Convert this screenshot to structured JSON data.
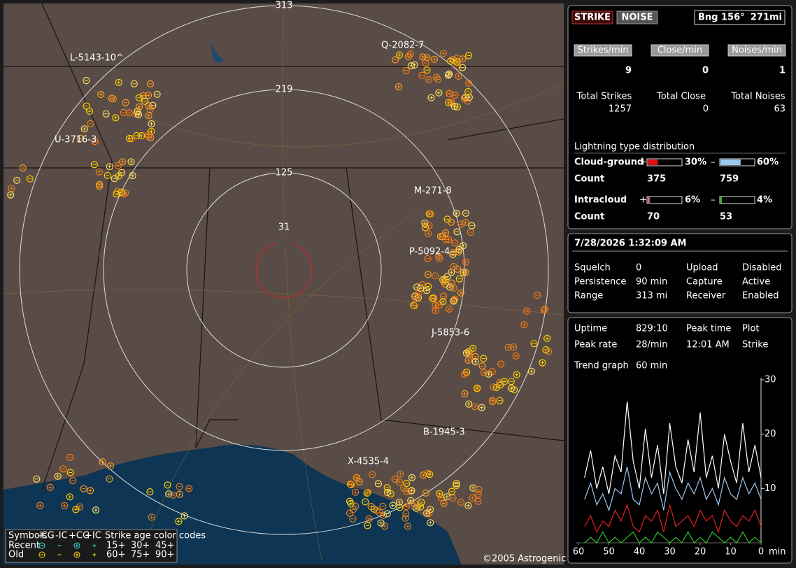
{
  "map": {
    "range_rings": [
      313,
      219,
      125,
      31
    ],
    "storms": [
      "L-5143-10^",
      "Q-2082-7",
      "U-3716-3",
      "M-271-8",
      "P-5092-4",
      "J-5853-6",
      "B-1945-3",
      "X-4535-4"
    ],
    "legend": {
      "header": [
        "Symbols",
        "-CG",
        "-IC",
        "+CG",
        "+IC",
        "Strike age color codes"
      ],
      "rows": [
        "Recent",
        "Old"
      ],
      "ages": [
        [
          "15+",
          "30+",
          "45+"
        ],
        [
          "60+",
          "75+",
          "90+"
        ]
      ]
    },
    "copyright": "©2005 Astrogenic Systems"
  },
  "status": {
    "strike_button": "STRIKE",
    "noise_button": "NOISE",
    "bearing": "Bng 156°",
    "distance": "271mi"
  },
  "rates": [
    {
      "label": "Strikes/min",
      "value": 9
    },
    {
      "label": "Close/min",
      "value": 0
    },
    {
      "label": "Noises/min",
      "value": 1
    }
  ],
  "totals": [
    {
      "label": "Total Strikes",
      "value": 1257
    },
    {
      "label": "Total Close",
      "value": 0
    },
    {
      "label": "Total Noises",
      "value": 63
    }
  ],
  "distribution": {
    "title": "Lightning type distribution",
    "plus": "+",
    "minus": "–",
    "count_label": "Count",
    "rows": [
      {
        "label": "Cloud-ground",
        "positive": {
          "value": 30,
          "label": "30%"
        },
        "negative": {
          "value": 60,
          "label": "60%"
        },
        "positive_count": 375,
        "negative_count": 759
      },
      {
        "label": "Intracloud",
        "positive": {
          "value": 6,
          "label": "6%"
        },
        "negative": {
          "value": 4,
          "label": "4%"
        },
        "positive_count": 70,
        "negative_count": 53
      }
    ]
  },
  "datetime": "7/28/2026 1:32:09 AM",
  "settings": [
    [
      "Squelch",
      "0",
      "Upload",
      "Disabled"
    ],
    [
      "Persistence",
      "90 min",
      "Capture",
      "Active"
    ],
    [
      "Range",
      "313 mi",
      "Receiver",
      "Enabled"
    ]
  ],
  "stats": [
    [
      "Uptime",
      "829:10",
      "Peak time",
      "Plot"
    ],
    [
      "Peak rate",
      "28/min",
      "12:01 AM",
      "Strike"
    ],
    [
      "Trend graph",
      "60 min"
    ]
  ],
  "chart_data": {
    "type": "line",
    "x_unit": "min",
    "x": [
      58,
      56,
      54,
      52,
      50,
      48,
      46,
      44,
      42,
      40,
      38,
      36,
      34,
      32,
      30,
      28,
      26,
      24,
      22,
      20,
      18,
      16,
      14,
      12,
      10,
      8,
      6,
      4,
      2,
      0
    ],
    "xlim": [
      60,
      0
    ],
    "xticks": [
      60,
      50,
      40,
      30,
      20,
      10,
      0
    ],
    "ylim": [
      0,
      30
    ],
    "yticks": [
      10,
      20,
      30
    ],
    "series": [
      {
        "color": "#ffffff",
        "values": [
          12,
          17,
          10,
          14,
          9,
          16,
          13,
          26,
          15,
          10,
          21,
          12,
          18,
          9,
          22,
          14,
          11,
          19,
          13,
          24,
          12,
          16,
          10,
          20,
          15,
          11,
          22,
          13,
          18,
          12
        ]
      },
      {
        "color": "#9cc8f0",
        "values": [
          8,
          11,
          7,
          9,
          6,
          10,
          9,
          14,
          8,
          7,
          12,
          9,
          11,
          6,
          13,
          10,
          8,
          11,
          9,
          12,
          8,
          10,
          7,
          12,
          9,
          8,
          12,
          9,
          11,
          8
        ]
      },
      {
        "color": "#e02020",
        "values": [
          3,
          5,
          2,
          4,
          3,
          6,
          4,
          7,
          3,
          2,
          5,
          4,
          6,
          2,
          7,
          3,
          4,
          5,
          3,
          6,
          4,
          5,
          2,
          6,
          4,
          3,
          5,
          4,
          6,
          3
        ]
      },
      {
        "color": "#30c030",
        "values": [
          0,
          1,
          0,
          2,
          0,
          1,
          0,
          1,
          2,
          0,
          1,
          0,
          2,
          1,
          0,
          1,
          0,
          2,
          0,
          1,
          0,
          2,
          1,
          0,
          1,
          0,
          2,
          0,
          1,
          0
        ]
      }
    ]
  }
}
